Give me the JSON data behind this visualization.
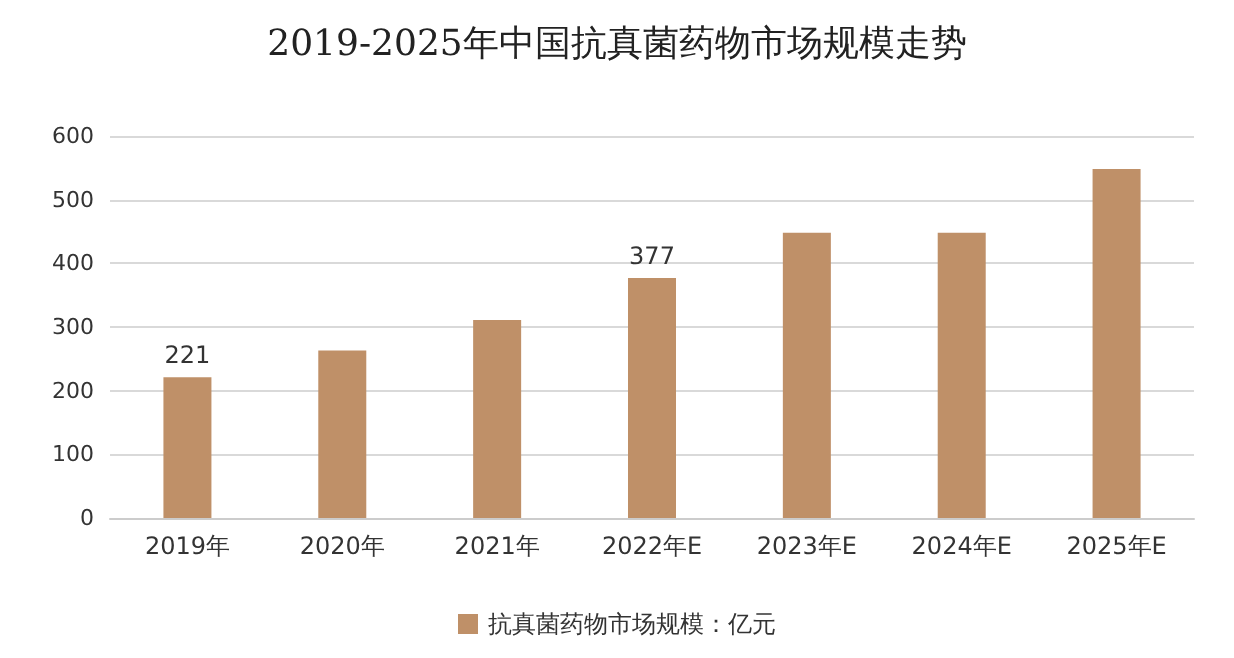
{
  "chart_data": {
    "type": "bar",
    "title": "2019-2025年中国抗真菌药物市场规模走势",
    "categories": [
      "2019年",
      "2020年",
      "2021年",
      "2022年E",
      "2023年E",
      "2024年E",
      "2025年E"
    ],
    "series": [
      {
        "name": "抗真菌药物市场规模：亿元",
        "color": "#bf9068",
        "values": [
          221,
          263,
          311,
          377,
          448,
          448,
          548
        ],
        "value_labels": [
          "221",
          null,
          null,
          "377",
          null,
          null,
          null
        ]
      }
    ],
    "ylim": [
      0,
      600
    ],
    "yticks": [
      0,
      100,
      200,
      300,
      400,
      500,
      600
    ],
    "grid": "y",
    "legend": "bottom"
  }
}
